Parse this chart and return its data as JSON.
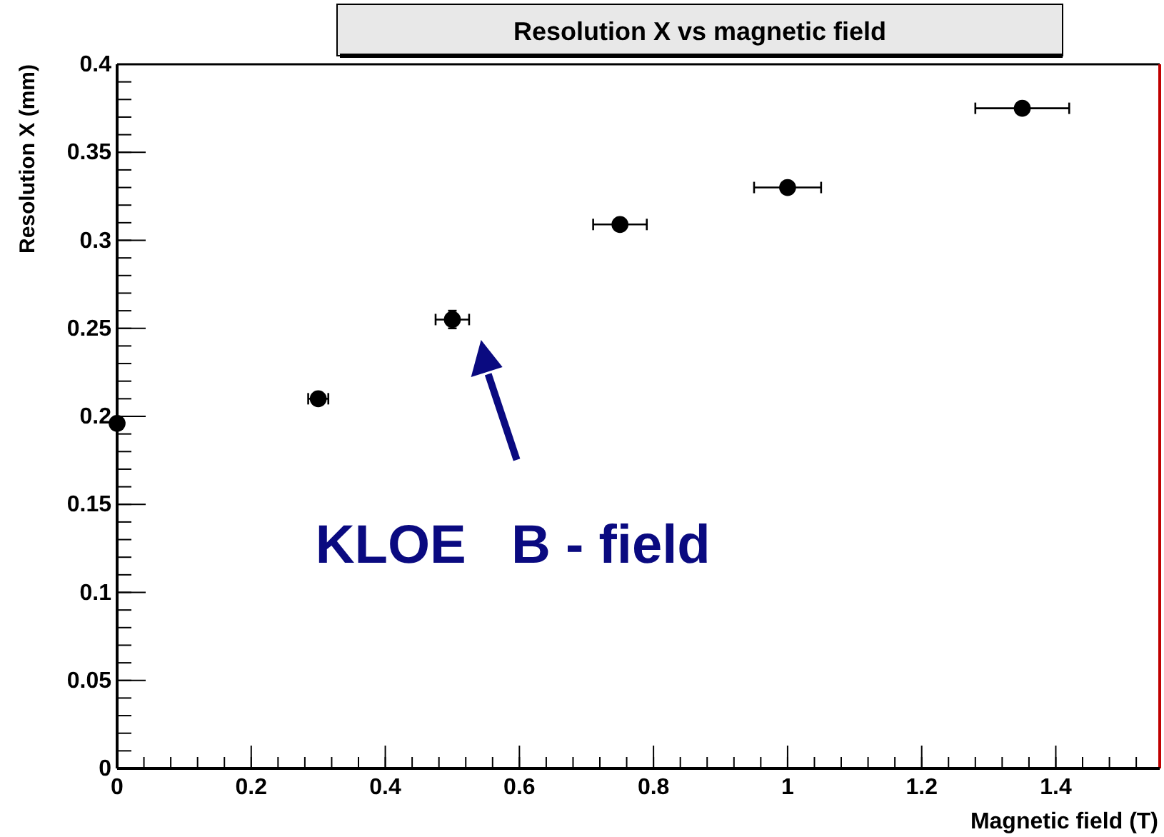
{
  "chart_data": {
    "type": "scatter",
    "title": "Resolution X vs magnetic field",
    "xlabel": "Magnetic field (T)",
    "ylabel": "Resolution X (mm)",
    "x": [
      0,
      0.3,
      0.5,
      0.75,
      1.0,
      1.35
    ],
    "values": [
      0.196,
      0.21,
      0.255,
      0.309,
      0.33,
      0.375
    ],
    "errors": [
      null,
      null,
      0.005,
      null,
      null,
      null
    ],
    "xerrors": [
      null,
      0.015,
      0.025,
      0.04,
      0.05,
      0.07
    ],
    "color": "#000000",
    "marker": "circle",
    "xlim": [
      0,
      1.555
    ],
    "xticks": [
      0,
      0.2,
      0.4,
      0.6,
      0.8,
      1,
      1.2,
      1.4
    ],
    "ylim": [
      0,
      0.4
    ],
    "yticks": [
      0,
      0.05,
      0.1,
      0.15,
      0.2,
      0.25,
      0.3,
      0.35,
      0.4
    ],
    "annotations": [
      "KLOE   B - field"
    ]
  }
}
